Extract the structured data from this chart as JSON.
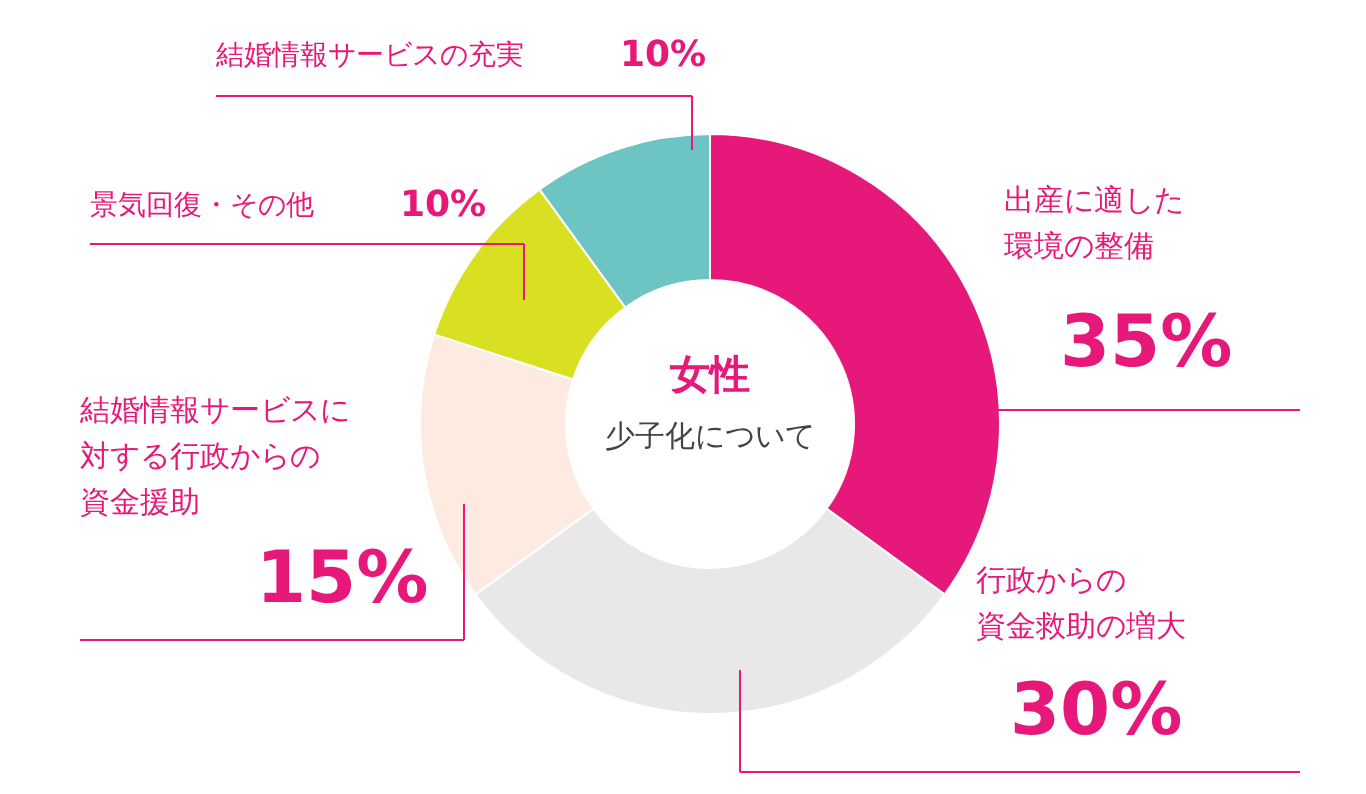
{
  "chart_data": {
    "type": "donut",
    "title": "女性",
    "subtitle": "少子化について",
    "categories": [
      "出産に適した環境の整備",
      "行政からの資金救助の増大",
      "結婚情報サービスに対する行政からの資金援助",
      "景気回復・その他",
      "結婚情報サービスの充実"
    ],
    "values": [
      35,
      30,
      15,
      10,
      10
    ],
    "value_labels": [
      "35%",
      "30%",
      "15%",
      "10%",
      "10%"
    ],
    "colors": [
      "#e6197a",
      "#e8e8e8",
      "#fdeae0",
      "#d9e021",
      "#6cc5c3"
    ]
  }
}
